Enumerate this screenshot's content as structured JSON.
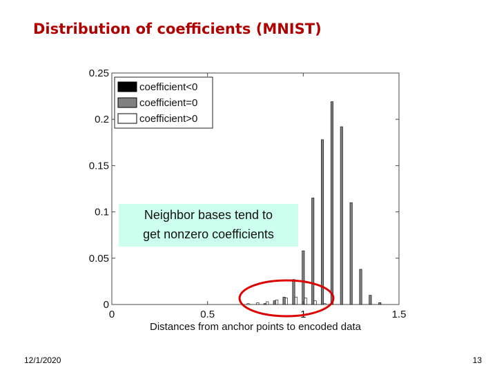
{
  "slide": {
    "title": "Distribution of coefficients (MNIST)",
    "date": "12/1/2020",
    "page_number": "13"
  },
  "colors": {
    "title": "#b00000",
    "negative": "#000000",
    "zero": "#808080",
    "positive": "#ffffff",
    "annotation_bg": "#ccffee",
    "highlight_circle": "#dd0000"
  },
  "annotation": {
    "line1": "Neighbor bases tend to",
    "line2": "get nonzero coefficients"
  },
  "chart_data": {
    "type": "bar",
    "title": "",
    "xlabel": "Distances from anchor points to encoded data",
    "ylabel": "",
    "xlim": [
      0,
      1.5
    ],
    "ylim": [
      0,
      0.25
    ],
    "xticks": [
      "0",
      "0.5",
      "1",
      "1.5"
    ],
    "yticks": [
      "0",
      "0.05",
      "0.1",
      "0.15",
      "0.2",
      "0.25"
    ],
    "grid": false,
    "legend_position": "top-left",
    "x": [
      0.7,
      0.75,
      0.8,
      0.85,
      0.9,
      0.95,
      1.0,
      1.05,
      1.1,
      1.15,
      1.2,
      1.25,
      1.3,
      1.35,
      1.4
    ],
    "series": [
      {
        "name": "coefficient<0",
        "color": "#000000",
        "values": [
          0,
          0,
          0,
          0,
          0,
          0,
          0,
          0,
          0,
          0,
          0,
          0,
          0,
          0,
          0
        ]
      },
      {
        "name": "coefficient=0",
        "color": "#808080",
        "values": [
          0,
          0,
          0.001,
          0.004,
          0.008,
          0.027,
          0.058,
          0.115,
          0.178,
          0.219,
          0.192,
          0.11,
          0.038,
          0.01,
          0.002
        ]
      },
      {
        "name": "coefficient>0",
        "color": "#ffffff",
        "values": [
          0.001,
          0.002,
          0.003,
          0.005,
          0.007,
          0.008,
          0.007,
          0.004,
          0.001,
          0,
          0,
          0,
          0,
          0,
          0
        ]
      }
    ]
  }
}
